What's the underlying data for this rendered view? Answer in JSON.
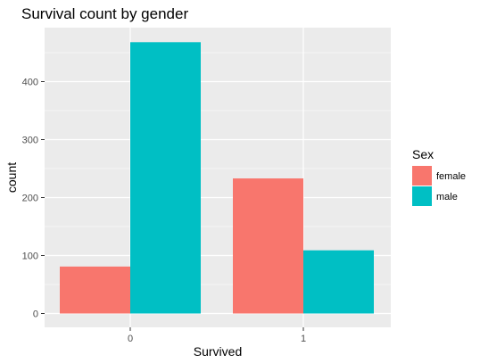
{
  "chart_data": {
    "type": "bar",
    "title": "Survival count by gender",
    "xlabel": "Survived",
    "ylabel": "count",
    "categories": [
      "0",
      "1"
    ],
    "series": [
      {
        "name": "female",
        "values": [
          81,
          233
        ]
      },
      {
        "name": "male",
        "values": [
          468,
          109
        ]
      }
    ],
    "ylim": [
      0,
      490
    ],
    "yticks": [
      0,
      100,
      200,
      300,
      400
    ],
    "grid": true,
    "legend": {
      "title": "Sex",
      "position": "right"
    },
    "colors": {
      "female": "#F8766D",
      "male": "#00BFC4",
      "panel": "#EBEBEB",
      "grid": "#FFFFFF"
    }
  }
}
